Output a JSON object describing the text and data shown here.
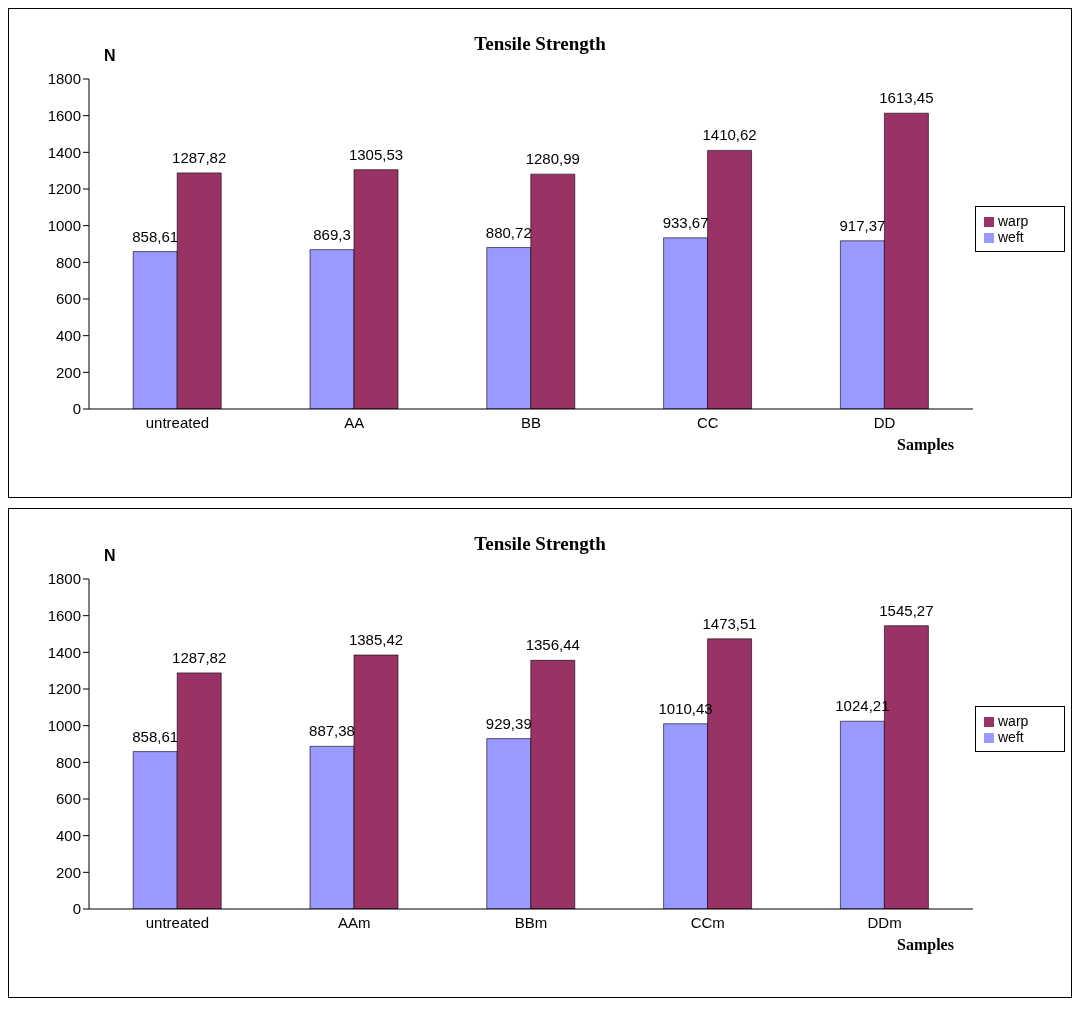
{
  "chart_data": [
    {
      "type": "bar",
      "title": "Tensile Strength",
      "xlabel": "Samples",
      "ylabel": "N",
      "categories": [
        "untreated",
        "AA",
        "BB",
        "CC",
        "DD"
      ],
      "series": [
        {
          "name": "weft",
          "color": "#9999ff",
          "values": [
            858.61,
            869.3,
            880.72,
            933.67,
            917.37
          ],
          "value_labels": [
            "858,61",
            "869,3",
            "880,72",
            "933,67",
            "917,37"
          ]
        },
        {
          "name": "warp",
          "color": "#993366",
          "values": [
            1287.82,
            1305.53,
            1280.99,
            1410.62,
            1613.45
          ],
          "value_labels": [
            "1287,82",
            "1305,53",
            "1280,99",
            "1410,62",
            "1613,45"
          ]
        }
      ],
      "ylim": [
        0,
        1800
      ],
      "yticks": [
        0,
        200,
        400,
        600,
        800,
        1000,
        1200,
        1400,
        1600,
        1800
      ],
      "legend": "right",
      "grid": false
    },
    {
      "type": "bar",
      "title": "Tensile Strength",
      "xlabel": "Samples",
      "ylabel": "N",
      "categories": [
        "untreated",
        "AAm",
        "BBm",
        "CCm",
        "DDm"
      ],
      "series": [
        {
          "name": "weft",
          "color": "#9999ff",
          "values": [
            858.61,
            887.38,
            929.39,
            1010.43,
            1024.21
          ],
          "value_labels": [
            "858,61",
            "887,38",
            "929,39",
            "1010,43",
            "1024,21"
          ]
        },
        {
          "name": "warp",
          "color": "#993366",
          "values": [
            1287.82,
            1385.42,
            1356.44,
            1473.51,
            1545.27
          ],
          "value_labels": [
            "1287,82",
            "1385,42",
            "1356,44",
            "1473,51",
            "1545,27"
          ]
        }
      ],
      "ylim": [
        0,
        1800
      ],
      "yticks": [
        0,
        200,
        400,
        600,
        800,
        1000,
        1200,
        1400,
        1600,
        1800
      ],
      "legend": "right",
      "grid": false
    }
  ]
}
